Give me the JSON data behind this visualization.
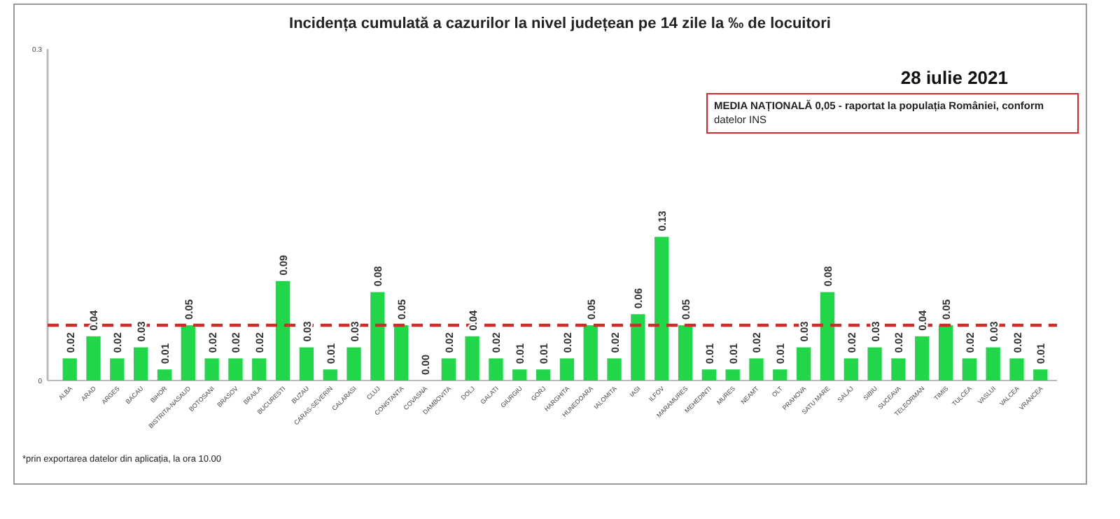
{
  "chart_data": {
    "type": "bar",
    "title": "Incidența cumulată a cazurilor la nivel județean pe 14 zile   la ‰ de locuitori",
    "subtitle": "28 iulie 2021",
    "categories": [
      "ALBA",
      "ARAD",
      "ARGES",
      "BACAU",
      "BIHOR",
      "BISTRITA-NASAUD",
      "BOTOSANI",
      "BRASOV",
      "BRAILA",
      "BUCURESTI",
      "BUZAU",
      "CARAS-SEVERIN",
      "CALARASI",
      "CLUJ",
      "CONSTANTA",
      "COVASNA",
      "DAMBOVITA",
      "DOLJ",
      "GALATI",
      "GIURGIU",
      "GORJ",
      "HARGHITA",
      "HUNEDOARA",
      "IALOMITA",
      "IASI",
      "ILFOV",
      "MARAMURES",
      "MEHEDINTI",
      "MURES",
      "NEAMT",
      "OLT",
      "PRAHOVA",
      "SATU MARE",
      "SALAJ",
      "SIBIU",
      "SUCEAVA",
      "TELEORMAN",
      "TIMIS",
      "TULCEA",
      "VASLUI",
      "VALCEA",
      "VRANCEA"
    ],
    "values": [
      0.02,
      0.04,
      0.02,
      0.03,
      0.01,
      0.05,
      0.02,
      0.02,
      0.02,
      0.09,
      0.03,
      0.01,
      0.03,
      0.08,
      0.05,
      0.0,
      0.02,
      0.04,
      0.02,
      0.01,
      0.01,
      0.02,
      0.05,
      0.02,
      0.06,
      0.13,
      0.05,
      0.01,
      0.01,
      0.02,
      0.01,
      0.03,
      0.08,
      0.02,
      0.03,
      0.02,
      0.04,
      0.05,
      0.02,
      0.03,
      0.02,
      0.01
    ],
    "value_labels": [
      "0.02",
      "0.04",
      "0.02",
      "0.03",
      "0.01",
      "0.05",
      "0.02",
      "0.02",
      "0.02",
      "0.09",
      "0.03",
      "0.01",
      "0.03",
      "0.08",
      "0.05",
      "0.00",
      "0.02",
      "0.04",
      "0.02",
      "0.01",
      "0.01",
      "0.02",
      "0.05",
      "0.02",
      "0.06",
      "0.13",
      "0.05",
      "0.01",
      "0.01",
      "0.02",
      "0.01",
      "0.03",
      "0.08",
      "0.02",
      "0.03",
      "0.02",
      "0.04",
      "0.05",
      "0.02",
      "0.03",
      "0.02",
      "0.01"
    ],
    "color": "#22d64a",
    "ylim": [
      0,
      0.3
    ],
    "yticks": [
      0,
      0.3
    ],
    "grid": false,
    "ref_lines": [
      {
        "axis": "y",
        "value": 0.05,
        "color": "#d42a2a",
        "line_style": "dashed"
      }
    ],
    "annotations": [
      "MEDIA NAȚIONALĂ 0,05 - raportat la populația României, conform datelor INS",
      "*prin exportarea datelor din aplicația, la ora 10.00"
    ]
  }
}
